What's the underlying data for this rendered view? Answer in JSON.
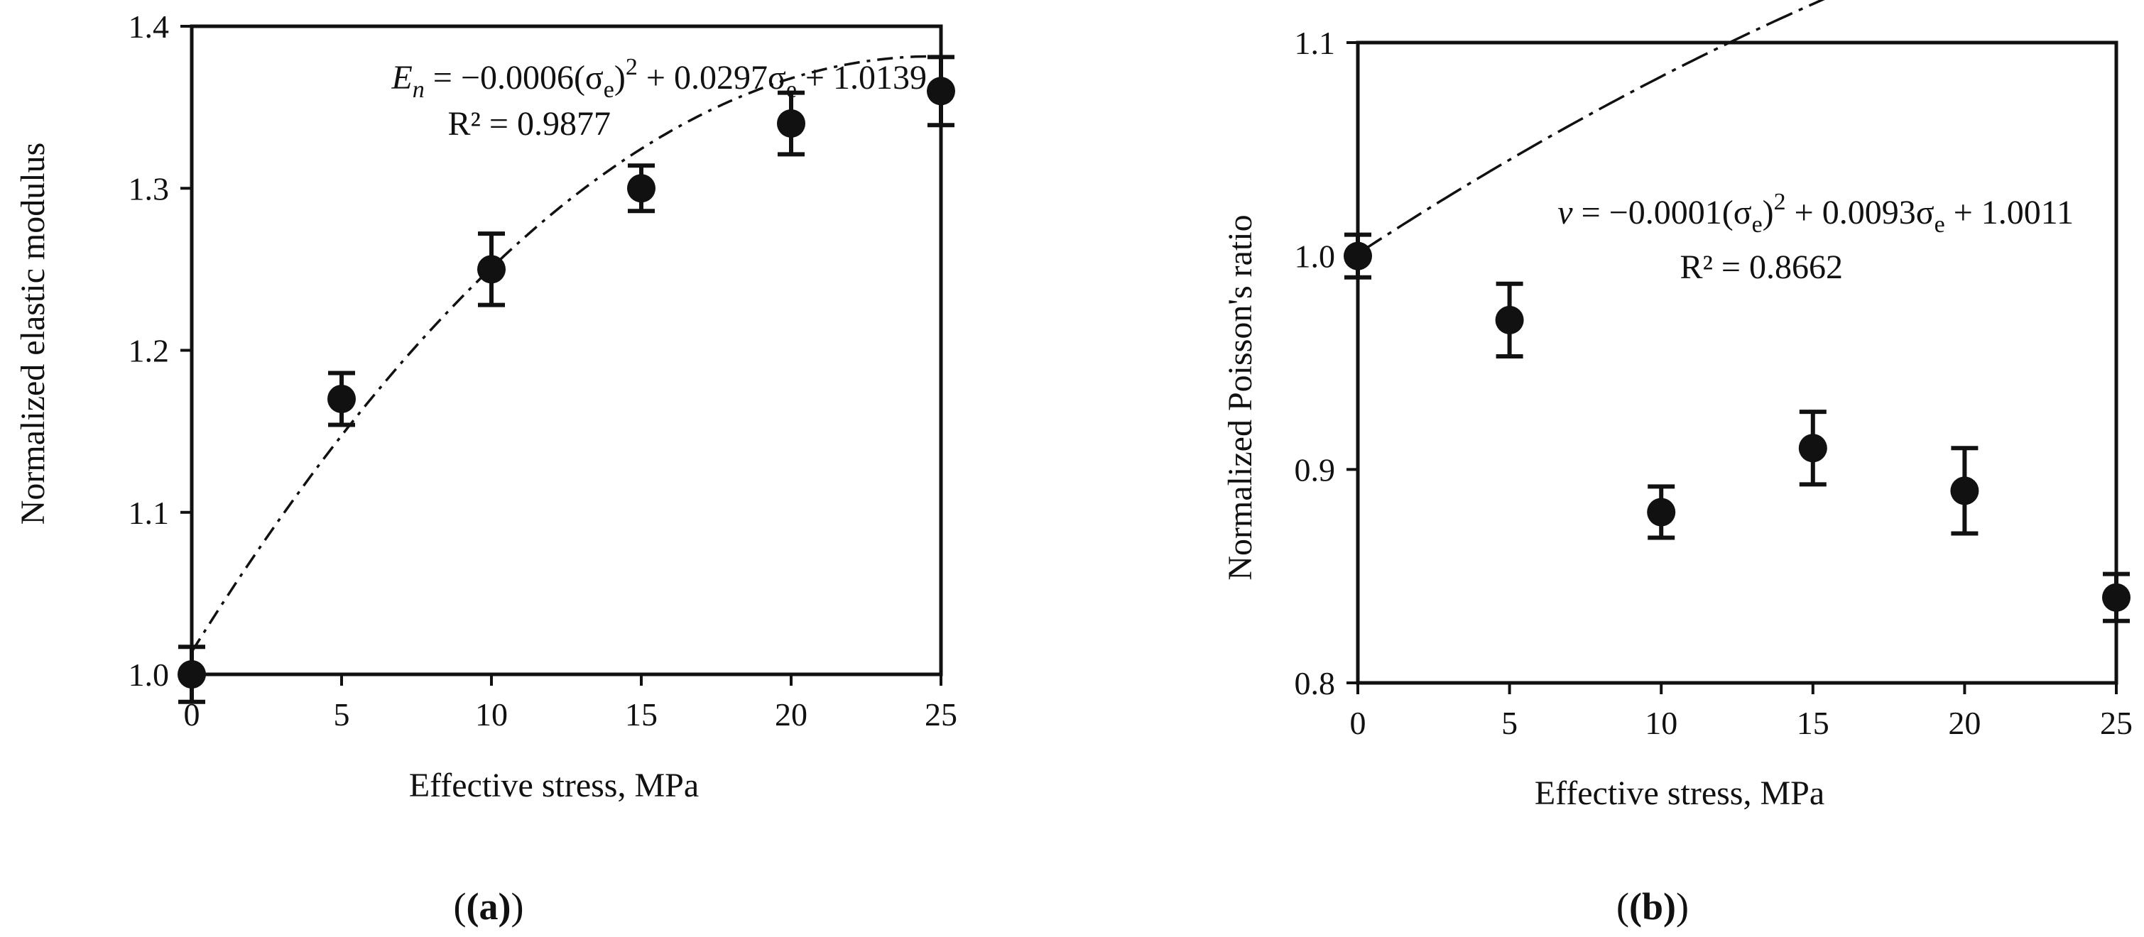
{
  "chart_data": [
    {
      "type": "scatter",
      "panel_label": "(a)",
      "xlabel": "Effective stress, MPa",
      "ylabel": "Normalized elastic modulus",
      "xlim": [
        0,
        25
      ],
      "ylim": [
        1.0,
        1.4
      ],
      "xticks": [
        "0",
        "5",
        "10",
        "15",
        "20",
        "25"
      ],
      "yticks": [
        "1.0",
        "1.1",
        "1.2",
        "1.3",
        "1.4"
      ],
      "x": [
        0,
        5,
        10,
        15,
        20,
        25
      ],
      "y": [
        1.0,
        1.17,
        1.25,
        1.3,
        1.34,
        1.36
      ],
      "yerr": [
        0.017,
        0.016,
        0.022,
        0.014,
        0.019,
        0.021
      ],
      "fit": {
        "a": -0.0006,
        "b": 0.0297,
        "c": 1.0139,
        "style": "dash-dot"
      },
      "equation": {
        "lhs": "E",
        "lhs_sub": "n",
        "eq": " = −0.0006(σ",
        "sub1": "e",
        "mid": ")",
        "sup": "2",
        "rest": " + 0.0297σ",
        "sub2": "e",
        "tail": " + 1.0139",
        "r2": "R² = 0.9877"
      }
    },
    {
      "type": "scatter",
      "panel_label": "(b)",
      "xlabel": "Effective stress, MPa",
      "ylabel": "Normalized Poisson's ratio",
      "xlim": [
        0,
        25
      ],
      "ylim": [
        0.8,
        1.1
      ],
      "xticks": [
        "0",
        "5",
        "10",
        "15",
        "20",
        "25"
      ],
      "yticks": [
        "0.8",
        "0.9",
        "1.0",
        "1.1"
      ],
      "x": [
        0,
        5,
        10,
        15,
        20,
        25
      ],
      "y": [
        1.0,
        0.97,
        0.88,
        0.91,
        0.89,
        0.84
      ],
      "yerr": [
        0.01,
        0.017,
        0.012,
        0.017,
        0.02,
        0.011
      ],
      "fit": {
        "a": -0.0001,
        "b": 0.0093,
        "c": 1.0011,
        "style": "long-dash-dot"
      },
      "equation": {
        "lhs": "v",
        "lhs_sub": "",
        "eq": " = −0.0001(σ",
        "sub1": "e",
        "mid": ")",
        "sup": "2",
        "rest": " + 0.0093σ",
        "sub2": "e",
        "tail": " + 1.0011",
        "r2": "R² = 0.8662"
      }
    }
  ]
}
